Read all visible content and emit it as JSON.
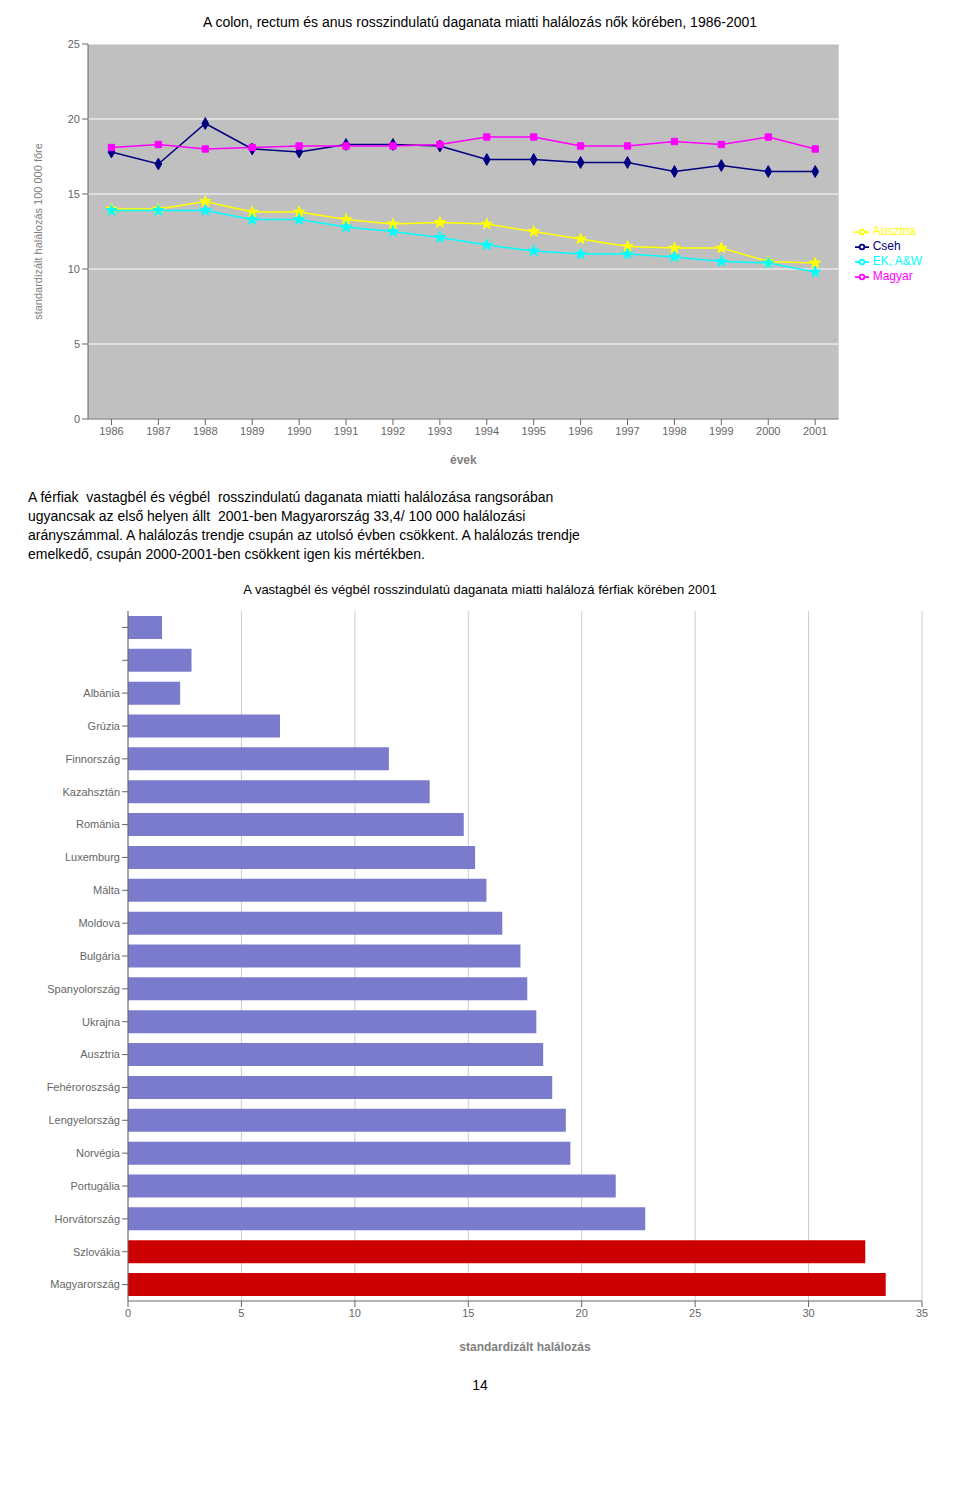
{
  "chart_data": [
    {
      "type": "line",
      "title": "A colon, rectum és anus rosszindulatú daganata miatti halálozás nők körében, 1986-2001",
      "x": [
        1986,
        1987,
        1988,
        1989,
        1990,
        1991,
        1992,
        1993,
        1994,
        1995,
        1996,
        1997,
        1998,
        1999,
        2000,
        2001
      ],
      "series": [
        {
          "name": "Cseh",
          "color": "#000080",
          "marker": "diamond",
          "values": [
            17.8,
            17.0,
            19.7,
            18.0,
            17.8,
            18.3,
            18.3,
            18.2,
            17.3,
            17.3,
            17.1,
            17.1,
            16.5,
            16.9,
            16.5,
            16.5
          ]
        },
        {
          "name": "Magyar",
          "color": "#ff00ff",
          "marker": "square",
          "values": [
            18.1,
            18.3,
            18.0,
            18.1,
            18.2,
            18.2,
            18.2,
            18.3,
            18.8,
            18.8,
            18.2,
            18.2,
            18.5,
            18.3,
            18.8,
            18.0
          ]
        },
        {
          "name": "Ausztria",
          "color": "#ffff00",
          "marker": "star",
          "values": [
            14.0,
            14.0,
            14.5,
            13.8,
            13.8,
            13.3,
            13.0,
            13.1,
            13.0,
            12.5,
            12.0,
            11.5,
            11.4,
            11.4,
            10.5,
            10.4
          ]
        },
        {
          "name": "EK, A&W",
          "color": "#00ffff",
          "marker": "star",
          "values": [
            13.9,
            13.9,
            13.9,
            13.3,
            13.3,
            12.8,
            12.5,
            12.1,
            11.6,
            11.2,
            11.0,
            11.0,
            10.8,
            10.5,
            10.4,
            9.8
          ]
        }
      ],
      "ylabel": "standardizált halálozás 100 000 főre",
      "xlabel": "évek",
      "xlim": [
        1985.5,
        2001.5
      ],
      "xticks": [
        1986,
        1987,
        1988,
        1989,
        1990,
        1991,
        1992,
        1993,
        1994,
        1995,
        1996,
        1997,
        1998,
        1999,
        2000,
        2001
      ],
      "ylim": [
        0,
        25
      ],
      "yticks": [
        0,
        5,
        10,
        15,
        20,
        25
      ],
      "grid": true,
      "legend": "right",
      "annotations": [
        "A férfiak  vastagbél és végbél  rosszindulatú daganata miatti halálozása rangsorában",
        "ugyancsak az első helyen állt  2001-ben Magyarország 33,4/ 100 000 halálozási",
        "arányszámmal. A halálozás trendje csupán az utolsó évben csökkent. A halálozás trendje",
        "emelkedő, csupán 2000-2001-ben csökkent igen kis mértékben."
      ]
    },
    {
      "type": "bar",
      "orientation": "horizontal",
      "title": "A vastagbél és végbél rosszindulatú daganata miatti halálozá férfiak körében 2001",
      "xlabel": "standardizált halálozás",
      "categories": [
        null,
        null,
        "Albánia",
        "Grúzia",
        "Finnország",
        "Kazahsztán",
        "Románia",
        "Luxemburg",
        "Málta",
        "Moldova",
        "Bulgária",
        "Spanyolország",
        "Ukrajna",
        "Ausztria",
        "Fehéroroszság",
        "Lengyelország",
        "Norvégia",
        "Portugália",
        "Horvátország",
        "Szlovákia",
        "Magyarország"
      ],
      "values": [
        1.5,
        2.8,
        2.3,
        6.7,
        11.5,
        13.3,
        14.8,
        15.3,
        15.8,
        16.5,
        17.3,
        17.6,
        18.0,
        18.3,
        18.7,
        19.3,
        19.5,
        21.5,
        22.8,
        32.5,
        33.4
      ],
      "colors": [
        "#7b7bce",
        "#7b7bce",
        "#7b7bce",
        "#7b7bce",
        "#7b7bce",
        "#7b7bce",
        "#7b7bce",
        "#7b7bce",
        "#7b7bce",
        "#7b7bce",
        "#7b7bce",
        "#7b7bce",
        "#7b7bce",
        "#7b7bce",
        "#7b7bce",
        "#7b7bce",
        "#7b7bce",
        "#7b7bce",
        "#7b7bce",
        "#cc0000",
        "#cc0000"
      ],
      "xlim": [
        0,
        35
      ],
      "xticks": [
        0,
        5,
        10,
        15,
        20,
        25,
        30,
        35
      ],
      "grid": true,
      "annotations": [
        "14"
      ]
    }
  ]
}
